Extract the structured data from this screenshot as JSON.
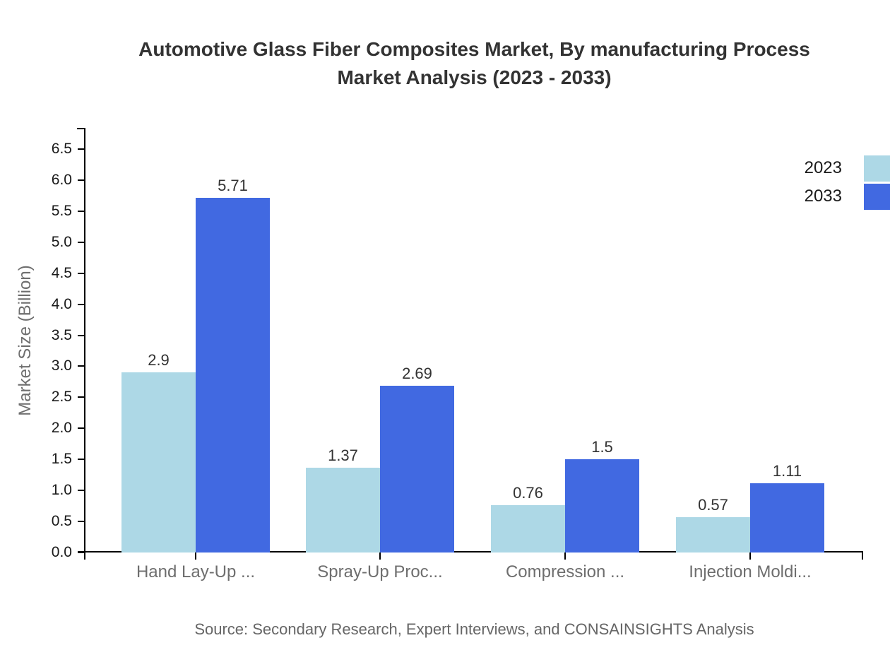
{
  "title": {
    "line1": "Automotive Glass Fiber Composites Market, By manufacturing Process",
    "line2": "Market Analysis (2023 - 2033)"
  },
  "y_axis_title": "Market Size (Billion)",
  "source_text": "Source: Secondary Research, Expert Interviews, and CONSAINSIGHTS Analysis",
  "legend": {
    "items": [
      {
        "label": "2023",
        "color": "#ADD8E6"
      },
      {
        "label": "2033",
        "color": "#4169E1"
      }
    ]
  },
  "chart_data": {
    "type": "bar",
    "title": "Automotive Glass Fiber Composites Market, By manufacturing Process Market Analysis (2023 - 2033)",
    "categories": [
      "Hand Lay-Up ...",
      "Spray-Up Proc...",
      "Compression ...",
      "Injection Moldi..."
    ],
    "series": [
      {
        "name": "2023",
        "color": "#ADD8E6",
        "values": [
          2.9,
          1.37,
          0.76,
          0.57
        ],
        "value_labels": [
          "2.9",
          "1.37",
          "0.76",
          "0.57"
        ]
      },
      {
        "name": "2033",
        "color": "#4169E1",
        "values": [
          5.71,
          2.69,
          1.5,
          1.11
        ],
        "value_labels": [
          "5.71",
          "2.69",
          "1.5",
          "1.11"
        ]
      }
    ],
    "xlabel": "",
    "ylabel": "Market Size (Billion)",
    "ylim": [
      0,
      6.8
    ],
    "y_tick_step": 0.5,
    "y_ticks": [
      "0.0",
      "0.5",
      "1.0",
      "1.5",
      "2.0",
      "2.5",
      "3.0",
      "3.5",
      "4.0",
      "4.5",
      "5.0",
      "5.5",
      "6.0",
      "6.5"
    ],
    "grid": false,
    "legend_position": "top-right"
  }
}
